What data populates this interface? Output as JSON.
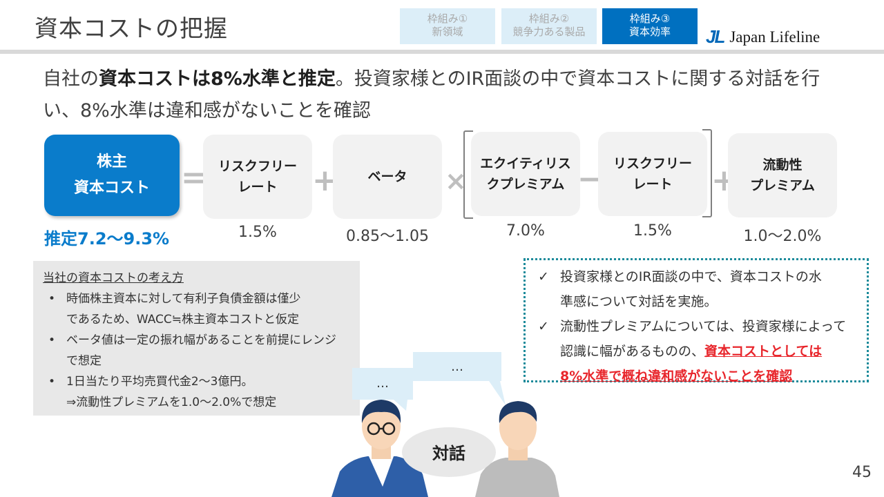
{
  "header": {
    "title": "資本コストの把握",
    "tabs": [
      {
        "line1": "枠組み①",
        "line2": "新領域",
        "active": false
      },
      {
        "line1": "枠組み②",
        "line2": "競争力ある製品",
        "active": false
      },
      {
        "line1": "枠組み③",
        "line2": "資本効率",
        "active": true
      }
    ],
    "logo_mark": "JL",
    "logo_text": "Japan Lifeline",
    "logo_color": "#0067b8"
  },
  "headline": {
    "pre": "自社の",
    "bold": "資本コストは8%水準と推定",
    "post": "。投資家様とのIR面談の中で資本コストに関する対話を行い、8%水準は違和感がないことを確認"
  },
  "formula": {
    "terms": [
      {
        "line1": "株主",
        "line2": "資本コスト",
        "value": "推定7.2〜9.3%"
      },
      {
        "line1": "リスクフリー",
        "line2": "レート",
        "value": "1.5%"
      },
      {
        "line1": "ベータ",
        "line2": "",
        "value": "0.85〜1.05"
      },
      {
        "line1": "エクイティリス",
        "line2": "クプレミアム",
        "value": "7.0%"
      },
      {
        "line1": "リスクフリー",
        "line2": "レート",
        "value": "1.5%"
      },
      {
        "line1": "流動性",
        "line2": "プレミアム",
        "value": "1.0〜2.0%"
      }
    ],
    "operators": [
      "=",
      "+",
      "×",
      "−",
      "+"
    ],
    "primary_color": "#0a7ccb"
  },
  "approach": {
    "title": "当社の資本コストの考え方",
    "bullet": "•",
    "items": [
      {
        "line1": "時価株主資本に対して有利子負債金額は僅少",
        "line2": "であるため、WACC≒株主資本コストと仮定"
      },
      {
        "line1": "ベータ値は一定の振れ幅があることを前提にレンジ",
        "line2": "で想定"
      },
      {
        "line1": "1日当たり平均売買代金2〜3億円。",
        "line2": "⇒流動性プレミアムを1.0〜2.0%で想定"
      }
    ]
  },
  "dialog": {
    "check": "✓",
    "item1_line1": "投資家様とのIR面談の中で、資本コストの水",
    "item1_line2": "準感について対話を実施。",
    "item2_line1": "流動性プレミアムについては、投資家様によって",
    "item2_line2_pre": "認識に幅があるものの、",
    "item2_line2_emph": "資本コストとしては",
    "item2_line3_emph": "8%水準で概ね違和感がないことを確認",
    "emph_color": "#e8262c"
  },
  "illustration": {
    "bubble_left": "…",
    "bubble_right": "…",
    "label": "対話"
  },
  "page_number": "45"
}
